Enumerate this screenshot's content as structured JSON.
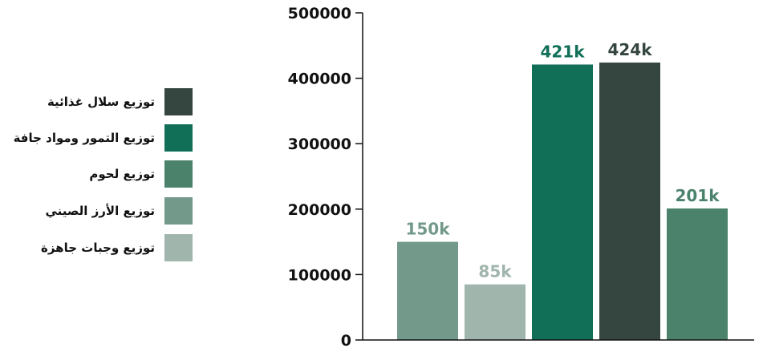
{
  "chart_data": {
    "type": "bar",
    "ylim": [
      0,
      500000
    ],
    "yticks": [
      "0",
      "100000",
      "200000",
      "300000",
      "400000",
      "500000"
    ],
    "grid": false,
    "legend_position": "left",
    "bars": [
      {
        "series": "توزيع الأرز الصيني",
        "value": 150000,
        "label": "150k",
        "color": "#72998a"
      },
      {
        "series": "توزيع وجبات جاهزة",
        "value": 85000,
        "label": "85k",
        "color": "#a0b5ac"
      },
      {
        "series": "توزيع التمور ومواد جافة",
        "value": 421000,
        "label": "421k",
        "color": "#116f58"
      },
      {
        "series": "توزيع سلال غذائية",
        "value": 424000,
        "label": "424k",
        "color": "#35453f"
      },
      {
        "series": "توزيع لحوم",
        "value": 201000,
        "label": "201k",
        "color": "#4b826c"
      }
    ],
    "legend": [
      {
        "name": "توزيع سلال غذائية",
        "color": "#35453f"
      },
      {
        "name": "توزيع التمور ومواد جافة",
        "color": "#116f58"
      },
      {
        "name": "توزيع لحوم",
        "color": "#4b826c"
      },
      {
        "name": "توزيع الأرز الصيني",
        "color": "#72998a"
      },
      {
        "name": "توزيع وجبات جاهزة",
        "color": "#a0b5ac"
      }
    ]
  }
}
